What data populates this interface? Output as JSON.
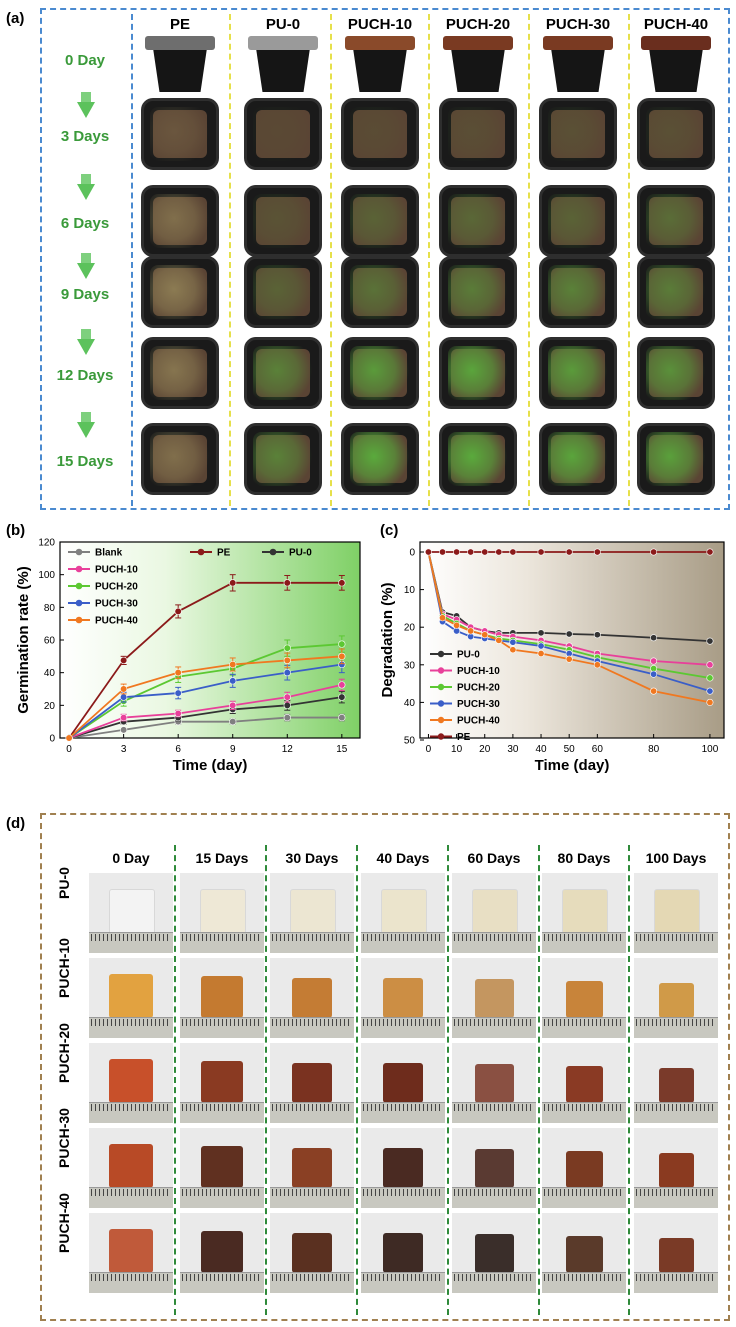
{
  "panel_a": {
    "letter": "(a)",
    "columns": [
      "PE",
      "PU-0",
      "PUCH-10",
      "PUCH-20",
      "PUCH-30",
      "PUCH-40"
    ],
    "days": [
      "0 Day",
      "3 Days",
      "6 Days",
      "9 Days",
      "12 Days",
      "15 Days"
    ]
  },
  "panel_d": {
    "letter": "(d)",
    "columns": [
      "0 Day",
      "15 Days",
      "30 Days",
      "40 Days",
      "60 Days",
      "80 Days",
      "100 Days"
    ],
    "rows": [
      "PU-0",
      "PUCH-10",
      "PUCH-20",
      "PUCH-30",
      "PUCH-40"
    ]
  },
  "colors": {
    "blank": "#808080",
    "pe": "#8b1a1a",
    "pu0": "#333333",
    "puch10": "#e8409a",
    "puch20": "#5cc832",
    "puch30": "#3a5ec8",
    "puch40": "#f07820",
    "day_label": "#3a9a3a",
    "frame_a": "#4a8ad0",
    "frame_d": "#a08050"
  },
  "chart_data": [
    {
      "panel": "(b)",
      "type": "line",
      "xlabel": "Time (day)",
      "ylabel": "Germination rate (%)",
      "xlim": [
        -0.5,
        16
      ],
      "ylim": [
        0,
        120
      ],
      "xticks": [
        0,
        3,
        6,
        9,
        12,
        15
      ],
      "yticks": [
        0,
        20,
        40,
        60,
        80,
        100,
        120
      ],
      "x": [
        0,
        3,
        6,
        9,
        12,
        15
      ],
      "series": [
        {
          "name": "Blank",
          "color": "#808080",
          "values": [
            0,
            5,
            10,
            10,
            12.5,
            12.5
          ],
          "err": [
            0,
            1,
            1.5,
            1.5,
            2,
            2
          ]
        },
        {
          "name": "PE",
          "color": "#8b1a1a",
          "values": [
            0,
            47.5,
            77.5,
            95,
            95,
            95
          ],
          "err": [
            0,
            2.5,
            4,
            5,
            4.5,
            4.5
          ]
        },
        {
          "name": "PU-0",
          "color": "#333333",
          "values": [
            0,
            10,
            12.5,
            17.5,
            20,
            25
          ],
          "err": [
            0,
            1.5,
            2,
            2.5,
            3,
            3.5
          ]
        },
        {
          "name": "PUCH-10",
          "color": "#e8409a",
          "values": [
            0,
            12.5,
            15,
            20,
            25,
            32.5
          ],
          "err": [
            0,
            2,
            2,
            2.5,
            3,
            3.5
          ]
        },
        {
          "name": "PUCH-20",
          "color": "#5cc832",
          "values": [
            0,
            22.5,
            37.5,
            42.5,
            55,
            57.5
          ],
          "err": [
            0,
            3,
            3.5,
            4,
            5,
            5
          ]
        },
        {
          "name": "PUCH-30",
          "color": "#3a5ec8",
          "values": [
            0,
            25,
            27.5,
            35,
            40,
            45
          ],
          "err": [
            0,
            3,
            3.5,
            4,
            4.5,
            5
          ]
        },
        {
          "name": "PUCH-40",
          "color": "#f07820",
          "values": [
            0,
            30,
            40,
            45,
            47.5,
            50
          ],
          "err": [
            0,
            3,
            3.5,
            4,
            4.5,
            4.5
          ]
        }
      ],
      "legend": "top-left"
    },
    {
      "panel": "(c)",
      "type": "line",
      "xlabel": "Time (day)",
      "ylabel": "Degradation (%)",
      "xlim": [
        -3,
        105
      ],
      "ylim": [
        0,
        50
      ],
      "y_inverted": true,
      "xticks": [
        0,
        10,
        20,
        30,
        40,
        50,
        60,
        80,
        100
      ],
      "yticks": [
        0,
        10,
        20,
        30,
        40,
        50
      ],
      "x": [
        0,
        5,
        10,
        15,
        20,
        25,
        30,
        40,
        50,
        60,
        80,
        100
      ],
      "series": [
        {
          "name": "PU-0",
          "color": "#333333",
          "values": [
            0,
            16,
            17,
            20,
            21,
            21.5,
            21.5,
            21.5,
            21.8,
            22,
            22.8,
            23.7
          ]
        },
        {
          "name": "PUCH-10",
          "color": "#e8409a",
          "values": [
            0,
            16.5,
            18,
            20,
            21,
            22,
            22.5,
            23.5,
            25,
            27,
            29,
            30
          ]
        },
        {
          "name": "PUCH-20",
          "color": "#5cc832",
          "values": [
            0,
            17,
            19,
            21,
            22,
            23,
            23.5,
            24.5,
            26,
            28,
            31,
            33.5
          ]
        },
        {
          "name": "PUCH-30",
          "color": "#3a5ec8",
          "values": [
            0,
            18.5,
            21,
            22.5,
            23,
            23.5,
            24,
            25,
            27,
            29,
            32.5,
            37
          ]
        },
        {
          "name": "PUCH-40",
          "color": "#f07820",
          "values": [
            0,
            17.5,
            19.5,
            21,
            22,
            23.5,
            26,
            27,
            28.5,
            30,
            37,
            40
          ]
        },
        {
          "name": "PE",
          "color": "#8b1a1a",
          "values": [
            0,
            0,
            0,
            0,
            0,
            0,
            0,
            0,
            0,
            0,
            0,
            0
          ]
        }
      ],
      "legend": "bottom-left"
    }
  ]
}
